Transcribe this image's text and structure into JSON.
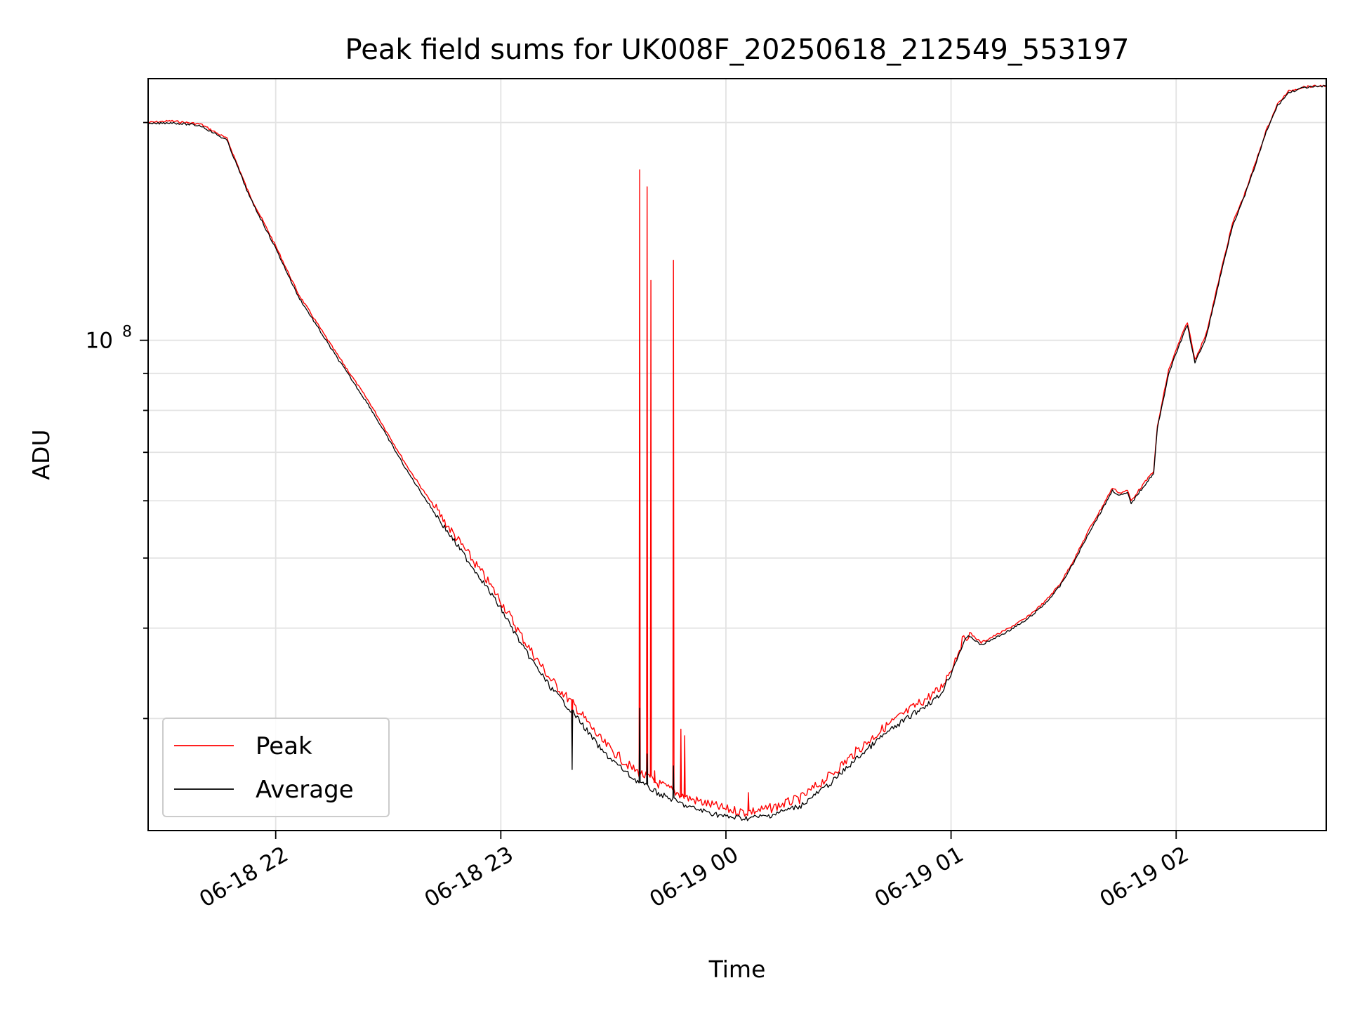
{
  "chart_data": {
    "type": "line",
    "title": "Peak field sums for UK008F_20250618_212549_553197",
    "xlabel": "Time",
    "ylabel": "ADU",
    "y_scale": "log",
    "ylim": [
      21000000,
      230000000
    ],
    "xlim": [
      "2025-06-18 21:26",
      "2025-06-19 02:40"
    ],
    "x_ticks": [
      {
        "value": "2025-06-18 22:00",
        "label": "06-18 22"
      },
      {
        "value": "2025-06-18 23:00",
        "label": "06-18 23"
      },
      {
        "value": "2025-06-19 00:00",
        "label": "06-19 00"
      },
      {
        "value": "2025-06-19 01:00",
        "label": "06-19 01"
      },
      {
        "value": "2025-06-19 02:00",
        "label": "06-19 02"
      }
    ],
    "y_ticks": [
      {
        "value": 100000000,
        "label": "10",
        "exponent": "8"
      }
    ],
    "grid": true,
    "legend_position": "lower-left",
    "series": [
      {
        "name": "Peak",
        "color": "#ff0000",
        "points": [
          [
            "2025-06-18 21:26",
            200000000
          ],
          [
            "2025-06-18 21:32",
            201000000
          ],
          [
            "2025-06-18 21:40",
            199000000
          ],
          [
            "2025-06-18 21:47",
            190000000
          ],
          [
            "2025-06-18 21:53",
            159000000
          ],
          [
            "2025-06-18 22:00",
            135000000
          ],
          [
            "2025-06-18 22:06",
            116000000
          ],
          [
            "2025-06-18 22:15",
            98000000
          ],
          [
            "2025-06-18 22:25",
            82000000
          ],
          [
            "2025-06-18 22:35",
            67000000
          ],
          [
            "2025-06-18 22:45",
            56000000
          ],
          [
            "2025-06-18 22:55",
            47500000
          ],
          [
            "2025-06-18 23:00",
            43500000
          ],
          [
            "2025-06-18 23:06",
            38500000
          ],
          [
            "2025-06-18 23:13",
            34000000
          ],
          [
            "2025-06-18 23:20",
            31000000
          ],
          [
            "2025-06-18 23:27",
            27800000
          ],
          [
            "2025-06-18 23:35",
            25500000
          ],
          [
            "2025-06-18 23:42",
            24300000
          ],
          [
            "2025-06-18 23:50",
            23200000
          ],
          [
            "2025-06-19 00:00",
            22400000
          ],
          [
            "2025-06-19 00:05",
            22200000
          ],
          [
            "2025-06-19 00:11",
            22400000
          ],
          [
            "2025-06-19 00:20",
            23200000
          ],
          [
            "2025-06-19 00:28",
            25000000
          ],
          [
            "2025-06-19 00:35",
            27000000
          ],
          [
            "2025-06-19 00:42",
            29000000
          ],
          [
            "2025-06-19 00:50",
            31000000
          ],
          [
            "2025-06-19 00:57",
            32800000
          ],
          [
            "2025-06-19 01:00",
            35000000
          ],
          [
            "2025-06-19 01:03",
            38200000
          ],
          [
            "2025-06-19 01:05",
            39400000
          ],
          [
            "2025-06-19 01:08",
            38200000
          ],
          [
            "2025-06-19 01:14",
            39600000
          ],
          [
            "2025-06-19 01:20",
            41300000
          ],
          [
            "2025-06-19 01:25",
            43500000
          ],
          [
            "2025-06-19 01:29",
            46000000
          ],
          [
            "2025-06-19 01:33",
            50000000
          ],
          [
            "2025-06-19 01:37",
            55000000
          ],
          [
            "2025-06-19 01:40",
            58500000
          ],
          [
            "2025-06-19 01:43",
            62500000
          ],
          [
            "2025-06-19 01:45",
            61500000
          ],
          [
            "2025-06-19 01:47",
            62000000
          ],
          [
            "2025-06-19 01:48",
            60000000
          ],
          [
            "2025-06-19 01:50",
            62000000
          ],
          [
            "2025-06-19 01:54",
            66000000
          ],
          [
            "2025-06-19 01:55",
            76000000
          ],
          [
            "2025-06-19 01:58",
            91000000
          ],
          [
            "2025-06-19 02:01",
            100000000
          ],
          [
            "2025-06-19 02:03",
            106000000
          ],
          [
            "2025-06-19 02:05",
            94000000
          ],
          [
            "2025-06-19 02:08",
            102000000
          ],
          [
            "2025-06-19 02:12",
            125000000
          ],
          [
            "2025-06-19 02:15",
            145000000
          ],
          [
            "2025-06-19 02:18",
            158000000
          ],
          [
            "2025-06-19 02:21",
            175000000
          ],
          [
            "2025-06-19 02:24",
            195000000
          ],
          [
            "2025-06-19 02:27",
            212000000
          ],
          [
            "2025-06-19 02:30",
            221000000
          ],
          [
            "2025-06-19 02:34",
            224000000
          ],
          [
            "2025-06-19 02:40",
            225000000
          ]
        ],
        "spikes": [
          [
            "2025-06-18 23:19",
            27500000
          ],
          [
            "2025-06-18 23:37",
            172000000
          ],
          [
            "2025-06-18 23:39",
            163000000
          ],
          [
            "2025-06-18 23:40",
            121000000
          ],
          [
            "2025-06-18 23:41",
            25400000
          ],
          [
            "2025-06-18 23:46",
            129000000
          ],
          [
            "2025-06-18 23:48",
            29000000
          ],
          [
            "2025-06-18 23:49",
            28400000
          ],
          [
            "2025-06-19 00:06",
            23700000
          ]
        ]
      },
      {
        "name": "Average",
        "color": "#000000",
        "points": [
          [
            "2025-06-18 21:26",
            199000000
          ],
          [
            "2025-06-18 21:32",
            200000000
          ],
          [
            "2025-06-18 21:40",
            198000000
          ],
          [
            "2025-06-18 21:47",
            189000000
          ],
          [
            "2025-06-18 21:53",
            158000000
          ],
          [
            "2025-06-18 22:00",
            134000000
          ],
          [
            "2025-06-18 22:06",
            115000000
          ],
          [
            "2025-06-18 22:15",
            97000000
          ],
          [
            "2025-06-18 22:25",
            81000000
          ],
          [
            "2025-06-18 22:35",
            66000000
          ],
          [
            "2025-06-18 22:45",
            55000000
          ],
          [
            "2025-06-18 22:55",
            46500000
          ],
          [
            "2025-06-18 23:00",
            42500000
          ],
          [
            "2025-06-18 23:06",
            37500000
          ],
          [
            "2025-06-18 23:13",
            33200000
          ],
          [
            "2025-06-18 23:20",
            30200000
          ],
          [
            "2025-06-18 23:27",
            27000000
          ],
          [
            "2025-06-18 23:35",
            24800000
          ],
          [
            "2025-06-18 23:42",
            23600000
          ],
          [
            "2025-06-18 23:50",
            22600000
          ],
          [
            "2025-06-19 00:00",
            21900000
          ],
          [
            "2025-06-19 00:05",
            21800000
          ],
          [
            "2025-06-19 00:11",
            21950000
          ],
          [
            "2025-06-19 00:20",
            22700000
          ],
          [
            "2025-06-19 00:28",
            24400000
          ],
          [
            "2025-06-19 00:35",
            26400000
          ],
          [
            "2025-06-19 00:42",
            28400000
          ],
          [
            "2025-06-19 00:50",
            30400000
          ],
          [
            "2025-06-19 00:57",
            32200000
          ],
          [
            "2025-06-19 01:00",
            34600000
          ],
          [
            "2025-06-19 01:03",
            37800000
          ],
          [
            "2025-06-19 01:05",
            39000000
          ],
          [
            "2025-06-19 01:08",
            37900000
          ],
          [
            "2025-06-19 01:14",
            39300000
          ],
          [
            "2025-06-19 01:20",
            41000000
          ],
          [
            "2025-06-19 01:25",
            43200000
          ],
          [
            "2025-06-19 01:29",
            45700000
          ],
          [
            "2025-06-19 01:33",
            49600000
          ],
          [
            "2025-06-19 01:37",
            54500000
          ],
          [
            "2025-06-19 01:40",
            58000000
          ],
          [
            "2025-06-19 01:43",
            62000000
          ],
          [
            "2025-06-19 01:45",
            61000000
          ],
          [
            "2025-06-19 01:47",
            61500000
          ],
          [
            "2025-06-19 01:48",
            59500000
          ],
          [
            "2025-06-19 01:50",
            61500000
          ],
          [
            "2025-06-19 01:54",
            65500000
          ],
          [
            "2025-06-19 01:55",
            75500000
          ],
          [
            "2025-06-19 01:58",
            90000000
          ],
          [
            "2025-06-19 02:01",
            99000000
          ],
          [
            "2025-06-19 02:03",
            105000000
          ],
          [
            "2025-06-19 02:05",
            93000000
          ],
          [
            "2025-06-19 02:08",
            101000000
          ],
          [
            "2025-06-19 02:12",
            124000000
          ],
          [
            "2025-06-19 02:15",
            144000000
          ],
          [
            "2025-06-19 02:18",
            157000000
          ],
          [
            "2025-06-19 02:21",
            174000000
          ],
          [
            "2025-06-19 02:24",
            194000000
          ],
          [
            "2025-06-19 02:27",
            211000000
          ],
          [
            "2025-06-19 02:30",
            220000000
          ],
          [
            "2025-06-19 02:34",
            223500000
          ],
          [
            "2025-06-19 02:40",
            224500000
          ]
        ],
        "spikes": [
          [
            "2025-06-18 23:19",
            25500000
          ],
          [
            "2025-06-18 23:37",
            31000000
          ],
          [
            "2025-06-18 23:39",
            26800000
          ],
          [
            "2025-06-18 23:46",
            25800000
          ]
        ]
      }
    ]
  }
}
